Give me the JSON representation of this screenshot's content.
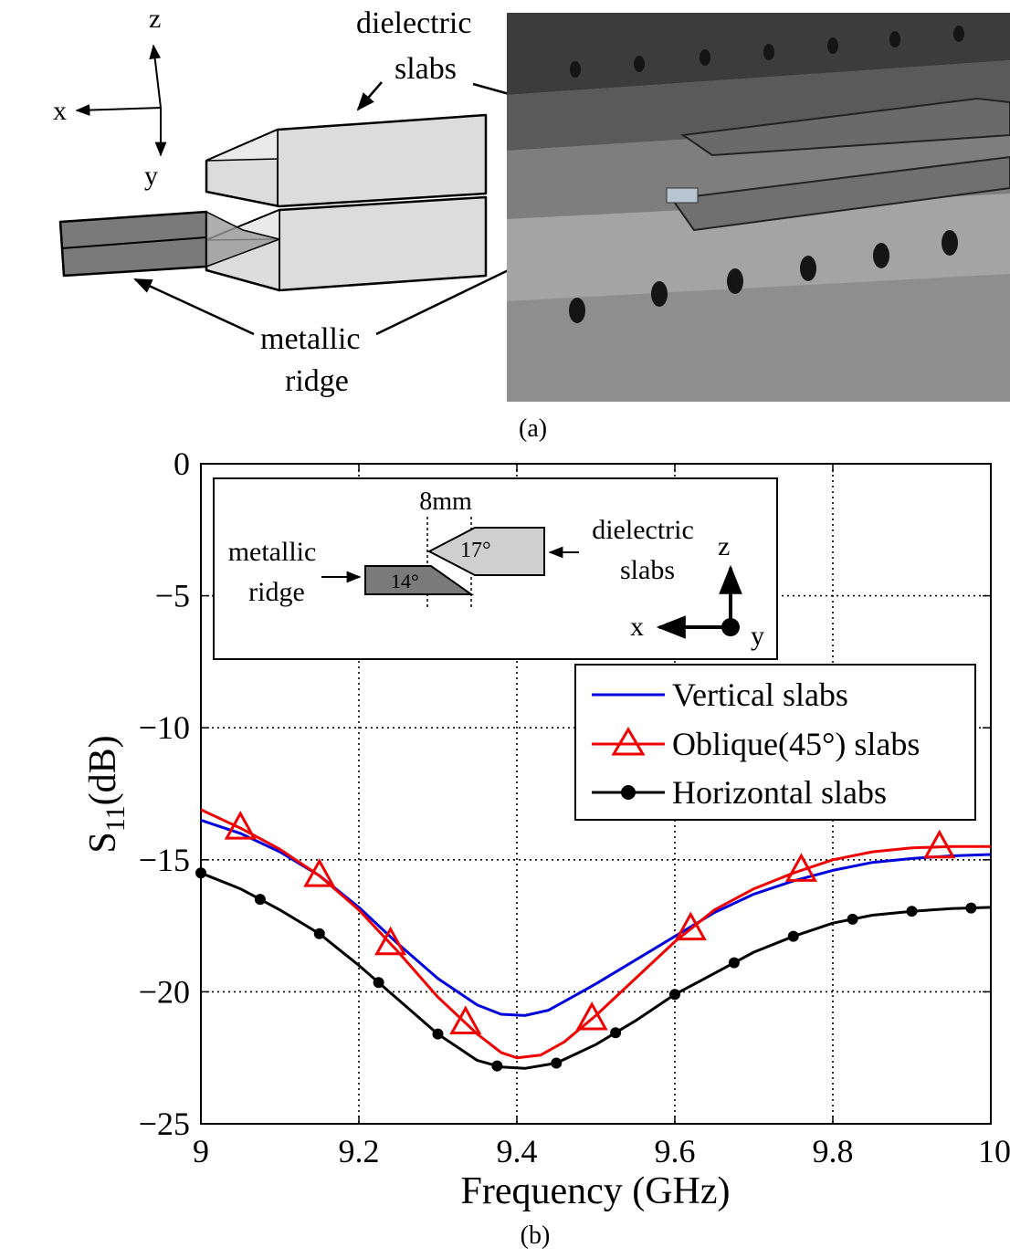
{
  "panel_a": {
    "caption": "(a)",
    "axes": {
      "x": "x",
      "y": "y",
      "z": "z"
    },
    "labels": {
      "dielectric_slabs_line1": "dielectric",
      "dielectric_slabs_line2": "slabs",
      "metallic_ridge_line1": "metallic",
      "metallic_ridge_line2": "ridge"
    },
    "photo": {
      "description": "photograph of ridge gap waveguide with dielectric slabs",
      "colors": [
        "#9a9a9a",
        "#5c5c5c",
        "#3a3a3a"
      ]
    }
  },
  "panel_b": {
    "caption": "(b)",
    "inset": {
      "dimension": "8mm",
      "angle_slab": "17°",
      "angle_ridge": "14°",
      "dielectric_line1": "dielectric",
      "dielectric_line2": "slabs",
      "metallic_line1": "metallic",
      "metallic_line2": "ridge",
      "axis_x": "x",
      "axis_y": "y",
      "axis_z": "z"
    }
  },
  "chart_data": {
    "type": "line",
    "xlabel": "Frequency (GHz)",
    "ylabel_main": "S",
    "ylabel_sub": "11",
    "ylabel_unit": "(dB)",
    "xlim": [
      9,
      10
    ],
    "ylim": [
      -25,
      0
    ],
    "xticks": [
      9,
      9.2,
      9.4,
      9.6,
      9.8,
      10
    ],
    "xtick_labels": [
      "9",
      "9.2",
      "9.4",
      "9.6",
      "9.8",
      "10"
    ],
    "yticks": [
      0,
      -5,
      -10,
      -15,
      -20,
      -25
    ],
    "ytick_labels": [
      "0",
      "−5",
      "−10",
      "−15",
      "−20",
      "−25"
    ],
    "grid": true,
    "legend_position": "top-right",
    "series": [
      {
        "name": "Vertical slabs",
        "color": "#0000dd",
        "marker": "none",
        "x": [
          9.0,
          9.05,
          9.1,
          9.15,
          9.2,
          9.25,
          9.3,
          9.35,
          9.38,
          9.41,
          9.44,
          9.47,
          9.5,
          9.55,
          9.6,
          9.65,
          9.7,
          9.75,
          9.8,
          9.85,
          9.9,
          9.95,
          10.0
        ],
        "y": [
          -13.5,
          -14.0,
          -14.7,
          -15.6,
          -16.8,
          -18.2,
          -19.5,
          -20.5,
          -20.85,
          -20.9,
          -20.7,
          -20.2,
          -19.7,
          -18.8,
          -17.9,
          -17.0,
          -16.3,
          -15.8,
          -15.4,
          -15.1,
          -14.95,
          -14.85,
          -14.8
        ]
      },
      {
        "name": "Oblique(45°) slabs",
        "color": "#ee0000",
        "marker": "triangle",
        "x": [
          9.0,
          9.05,
          9.1,
          9.15,
          9.2,
          9.25,
          9.3,
          9.35,
          9.38,
          9.4,
          9.43,
          9.46,
          9.5,
          9.55,
          9.6,
          9.65,
          9.7,
          9.75,
          9.8,
          9.85,
          9.9,
          9.95,
          10.0
        ],
        "y": [
          -13.1,
          -13.8,
          -14.6,
          -15.6,
          -16.9,
          -18.5,
          -20.2,
          -21.6,
          -22.3,
          -22.5,
          -22.4,
          -21.9,
          -20.9,
          -19.5,
          -18.1,
          -16.9,
          -16.1,
          -15.5,
          -15.0,
          -14.7,
          -14.55,
          -14.5,
          -14.5
        ],
        "marker_x": [
          9.05,
          9.15,
          9.24,
          9.335,
          9.495,
          9.62,
          9.76,
          9.935
        ]
      },
      {
        "name": "Horizontal slabs",
        "color": "#000000",
        "marker": "circle",
        "x": [
          9.0,
          9.05,
          9.1,
          9.15,
          9.2,
          9.25,
          9.3,
          9.35,
          9.38,
          9.41,
          9.45,
          9.5,
          9.55,
          9.6,
          9.65,
          9.7,
          9.75,
          9.8,
          9.85,
          9.9,
          9.95,
          10.0
        ],
        "y": [
          -15.5,
          -16.1,
          -16.9,
          -17.8,
          -19.0,
          -20.3,
          -21.6,
          -22.6,
          -22.85,
          -22.9,
          -22.7,
          -22.0,
          -21.1,
          -20.1,
          -19.3,
          -18.5,
          -17.9,
          -17.4,
          -17.1,
          -16.95,
          -16.85,
          -16.8
        ],
        "marker_x": [
          9.0,
          9.075,
          9.15,
          9.225,
          9.3,
          9.375,
          9.45,
          9.525,
          9.6,
          9.675,
          9.75,
          9.825,
          9.9,
          9.975
        ]
      }
    ]
  }
}
